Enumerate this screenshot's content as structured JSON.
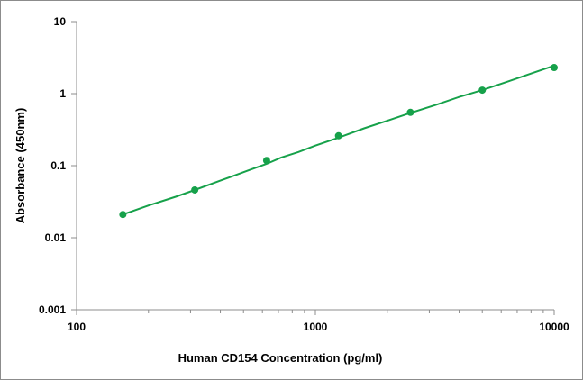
{
  "chart_data": {
    "type": "scatter",
    "title": "",
    "xlabel": "Human CD154 Concentration (pg/ml)",
    "ylabel": "Absorbance (450nm)",
    "x_scale": "log",
    "y_scale": "log",
    "xlim": [
      100,
      10000
    ],
    "ylim": [
      0.001,
      10
    ],
    "x_ticks": [
      "100",
      "1000",
      "10000"
    ],
    "y_ticks": [
      "0.001",
      "0.01",
      "0.1",
      "1",
      "10"
    ],
    "grid": false,
    "legend": "none",
    "series": [
      {
        "color": "#16a14a",
        "points": [
          {
            "x": 156.25,
            "y": 0.021
          },
          {
            "x": 312.5,
            "y": 0.046
          },
          {
            "x": 625,
            "y": 0.118
          },
          {
            "x": 1250,
            "y": 0.26
          },
          {
            "x": 2500,
            "y": 0.55
          },
          {
            "x": 5000,
            "y": 1.12
          },
          {
            "x": 10000,
            "y": 2.3
          }
        ]
      }
    ],
    "fit_curve": {
      "color": "#16a14a",
      "points": [
        {
          "x": 156.25,
          "y": 0.021
        },
        {
          "x": 200,
          "y": 0.028
        },
        {
          "x": 260,
          "y": 0.037
        },
        {
          "x": 312.5,
          "y": 0.046
        },
        {
          "x": 400,
          "y": 0.062
        },
        {
          "x": 520,
          "y": 0.085
        },
        {
          "x": 625,
          "y": 0.106
        },
        {
          "x": 720,
          "y": 0.13
        },
        {
          "x": 850,
          "y": 0.155
        },
        {
          "x": 1000,
          "y": 0.19
        },
        {
          "x": 1250,
          "y": 0.245
        },
        {
          "x": 1600,
          "y": 0.33
        },
        {
          "x": 2000,
          "y": 0.42
        },
        {
          "x": 2500,
          "y": 0.54
        },
        {
          "x": 3200,
          "y": 0.7
        },
        {
          "x": 4000,
          "y": 0.9
        },
        {
          "x": 5000,
          "y": 1.12
        },
        {
          "x": 6500,
          "y": 1.5
        },
        {
          "x": 8000,
          "y": 1.9
        },
        {
          "x": 10000,
          "y": 2.45
        }
      ]
    }
  }
}
